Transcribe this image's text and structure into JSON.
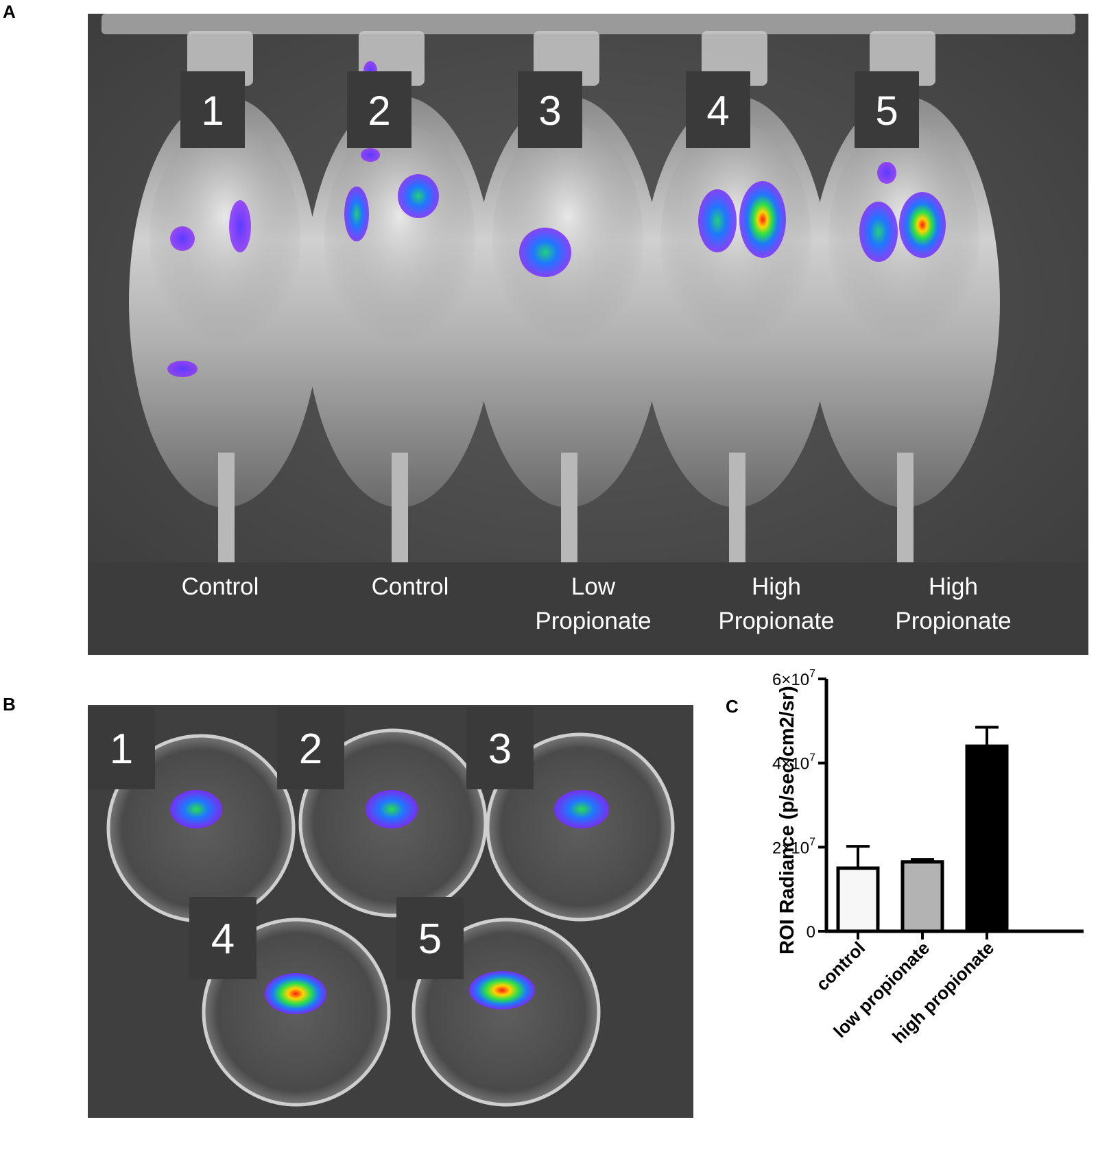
{
  "panels": {
    "a": {
      "letter": "A",
      "mice": [
        {
          "number": "1",
          "group_line1": "Control",
          "group_line2": ""
        },
        {
          "number": "2",
          "group_line1": "Control",
          "group_line2": ""
        },
        {
          "number": "3",
          "group_line1": "Low",
          "group_line2": "Propionate"
        },
        {
          "number": "4",
          "group_line1": "High",
          "group_line2": "Propionate"
        },
        {
          "number": "5",
          "group_line1": "High",
          "group_line2": "Propionate"
        }
      ]
    },
    "b": {
      "letter": "B",
      "dishes": [
        {
          "number": "1"
        },
        {
          "number": "2"
        },
        {
          "number": "3"
        },
        {
          "number": "4"
        },
        {
          "number": "5"
        }
      ]
    },
    "c": {
      "letter": "C"
    }
  },
  "chart_data": {
    "type": "bar",
    "title": "",
    "ylabel": "ROI Radiance (p/sec/cm2/sr)",
    "xlabel": "",
    "ylim": [
      0,
      60000000
    ],
    "ytick_labels": [
      {
        "base": "0",
        "exp": ""
      },
      {
        "base": "2×10",
        "exp": "7"
      },
      {
        "base": "4×10",
        "exp": "7"
      },
      {
        "base": "6×10",
        "exp": "7"
      }
    ],
    "categories": [
      "control",
      "low propionate",
      "high propionate"
    ],
    "values": [
      15000000,
      16500000,
      44000000
    ],
    "error_upper": [
      20200000,
      17100000,
      48500000
    ],
    "colors": [
      "#f7f7f7",
      "#b3b3b3",
      "#000000"
    ]
  }
}
